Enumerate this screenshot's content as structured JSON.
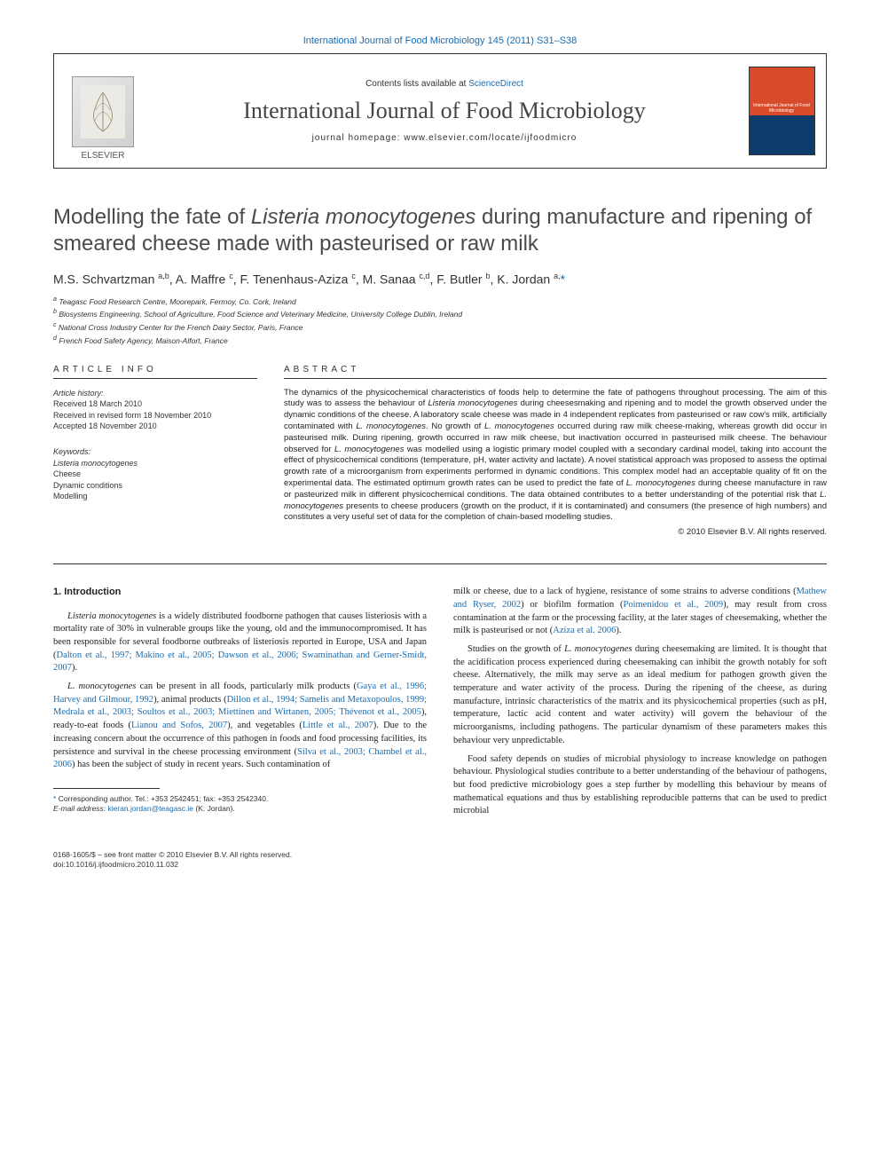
{
  "top_link": "International Journal of Food Microbiology 145 (2011) S31–S38",
  "banner": {
    "contents_prefix": "Contents lists available at ",
    "contents_link": "ScienceDirect",
    "journal_name": "International Journal of Food Microbiology",
    "homepage_prefix": "journal homepage: ",
    "homepage_url": "www.elsevier.com/locate/ijfoodmicro",
    "publisher": "ELSEVIER",
    "cover_label": "International Journal of\nFood Microbiology"
  },
  "article": {
    "title_html": "Modelling the fate of <em>Listeria monocytogenes</em> during manufacture and ripening of smeared cheese made with pasteurised or raw milk",
    "authors_html": "M.S. Schvartzman <sup>a,b</sup>, A. Maffre <sup>c</sup>, F. Tenenhaus-Aziza <sup>c</sup>, M. Sanaa <sup>c,d</sup>, F. Butler <sup>b</sup>, K. Jordan <sup>a,</sup><span class='ast'>*</span>",
    "affiliations": [
      "a Teagasc Food Research Centre, Moorepark, Fermoy, Co. Cork, Ireland",
      "b Biosystems Engineering, School of Agriculture, Food Science and Veterinary Medicine, University College Dublin, Ireland",
      "c National Cross Industry Center for the French Dairy Sector, Paris, France",
      "d French Food Safety Agency, Maison-Alfort, France"
    ]
  },
  "article_info": {
    "header": "ARTICLE INFO",
    "history_label": "Article history:",
    "received": "Received 18 March 2010",
    "revised": "Received in revised form 18 November 2010",
    "accepted": "Accepted 18 November 2010",
    "keywords_label": "Keywords:",
    "keywords": [
      "Listeria monocytogenes",
      "Cheese",
      "Dynamic conditions",
      "Modelling"
    ]
  },
  "abstract": {
    "header": "ABSTRACT",
    "text_html": "The dynamics of the physicochemical characteristics of foods help to determine the fate of pathogens throughout processing. The aim of this study was to assess the behaviour of <em>Listeria monocytogenes</em> during cheesesmaking and ripening and to model the growth observed under the dynamic conditions of the cheese. A laboratory scale cheese was made in 4 independent replicates from pasteurised or raw cow's milk, artificially contaminated with <em>L. monocytogenes</em>. No growth of <em>L. monocytogenes</em> occurred during raw milk cheese-making, whereas growth did occur in pasteurised milk. During ripening, growth occurred in raw milk cheese, but inactivation occurred in pasteurised milk cheese. The behaviour observed for <em>L. monocytogenes</em> was modelled using a logistic primary model coupled with a secondary cardinal model, taking into account the effect of physicochemical conditions (temperature, pH, water activity and lactate). A novel statistical approach was proposed to assess the optimal growth rate of a microorganism from experiments performed in dynamic conditions. This complex model had an acceptable quality of fit on the experimental data. The estimated optimum growth rates can be used to predict the fate of <em>L. monocytogenes</em> during cheese manufacture in raw or pasteurized milk in different physicochemical conditions. The data obtained contributes to a better understanding of the potential risk that <em>L. monocytogenes</em> presents to cheese producers (growth on the product, if it is contaminated) and consumers (the presence of high numbers) and constitutes a very useful set of data for the completion of chain-based modelling studies.",
    "copyright": "© 2010 Elsevier B.V. All rights reserved."
  },
  "intro": {
    "heading": "1. Introduction",
    "p1_html": "<em>Listeria monocytogenes</em> is a widely distributed foodborne pathogen that causes listeriosis with a mortality rate of 30% in vulnerable groups like the young, old and the immunocompromised. It has been responsible for several foodborne outbreaks of listeriosis reported in Europe, USA and Japan (<span class='ref'>Dalton et al., 1997; Makino et al., 2005; Dawson et al., 2006; Swaminathan and Gerner-Smidt, 2007</span>).",
    "p2_html": "<em>L. monocytogenes</em> can be present in all foods, particularly milk products (<span class='ref'>Gaya et al., 1996; Harvey and Gilmour, 1992</span>), animal products (<span class='ref'>Dillon et al., 1994; Samelis and Metaxopoulos, 1999; Medrala et al., 2003; Soultos et al., 2003; Miettinen and Wirtanen, 2005; Thévenot et al., 2005</span>), ready-to-eat foods (<span class='ref'>Lianou and Sofos, 2007</span>), and vegetables (<span class='ref'>Little et al., 2007</span>). Due to the increasing concern about the occurrence of this pathogen in foods and food processing facilities, its persistence and survival in the cheese processing environment (<span class='ref'>Silva et al., 2003; Chambel et al., 2006</span>) has been the subject of study in recent years. Such contamination of",
    "p3_html": "milk or cheese, due to a lack of hygiene, resistance of some strains to adverse conditions (<span class='ref'>Mathew and Ryser, 2002</span>) or biofilm formation (<span class='ref'>Poimenidou et al., 2009</span>), may result from cross contamination at the farm or the processing facility, at the later stages of cheesemaking, whether the milk is pasteurised or not (<span class='ref'>Aziza et al. 2006</span>).",
    "p4_html": "Studies on the growth of <em>L. monocytogenes</em> during cheesemaking are limited. It is thought that the acidification process experienced during cheesemaking can inhibit the growth notably for soft cheese. Alternatively, the milk may serve as an ideal medium for pathogen growth given the temperature and water activity of the process. During the ripening of the cheese, as during manufacture, intrinsic characteristics of the matrix and its physicochemical properties (such as pH, temperature, lactic acid content and water activity) will govern the behaviour of the microorganisms, including pathogens. The particular dynamism of these parameters makes this behaviour very unpredictable.",
    "p5_html": "Food safety depends on studies of microbial physiology to increase knowledge on pathogen behaviour. Physiological studies contribute to a better understanding of the behaviour of pathogens, but food predictive microbiology goes a step further by modelling this behaviour by means of mathematical equations and thus by establishing reproducible patterns that can be used to predict microbial"
  },
  "footnote": {
    "corresponding": "Corresponding author. Tel.: +353 2542451; fax: +353 2542340.",
    "email_label": "E-mail address:",
    "email": "kieran.jordan@teagasc.ie",
    "email_person": "(K. Jordan)."
  },
  "footer": {
    "line1": "0168-1605/$ – see front matter © 2010 Elsevier B.V. All rights reserved.",
    "doi": "doi:10.1016/j.ijfoodmicro.2010.11.032"
  },
  "colors": {
    "link": "#1a6baf",
    "text": "#222222",
    "header_text": "#4a4a4a",
    "cover_top": "#d84b2a",
    "cover_bottom": "#0b3c6b"
  }
}
